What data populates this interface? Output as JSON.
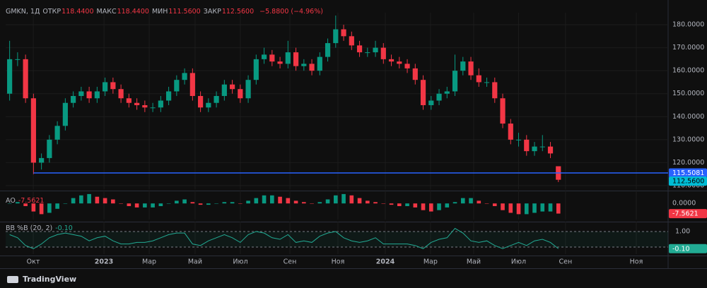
{
  "chart_data": [
    {
      "type": "candlestick",
      "symbol": "GMKN, 1Д",
      "ohlc_labels": [
        {
          "name": "ОТКР",
          "value": "118.4400"
        },
        {
          "name": "МАКС",
          "value": "118.4400"
        },
        {
          "name": "МИН",
          "value": "111.5600"
        },
        {
          "name": "ЗАКР",
          "value": "112.5600"
        }
      ],
      "change": "−5.8800 (−4.96%)",
      "open": [
        150,
        165,
        165,
        148,
        120,
        122,
        130,
        136,
        146,
        149,
        151,
        148,
        151,
        155,
        152,
        148,
        146,
        145,
        144,
        144,
        147,
        151,
        156,
        159,
        149,
        144,
        146,
        149,
        154,
        152,
        148,
        156,
        165,
        167,
        164,
        163,
        168,
        162,
        163,
        160,
        166,
        172,
        178,
        175,
        171,
        168,
        168,
        170,
        165,
        164,
        163,
        161,
        156,
        145,
        147,
        150,
        151,
        160,
        164,
        158,
        155,
        155,
        148,
        137,
        130,
        130,
        125,
        127,
        127,
        118.44
      ],
      "high": [
        173,
        168,
        167,
        150,
        124,
        132,
        138,
        148,
        151,
        153,
        153,
        153,
        157,
        157,
        154,
        150,
        148,
        147,
        146,
        149,
        153,
        158,
        161,
        161,
        151,
        148,
        151,
        156,
        156,
        154,
        158,
        167,
        170,
        169,
        166,
        173,
        170,
        165,
        165,
        168,
        174,
        184,
        180,
        177,
        173,
        170,
        173,
        172,
        167,
        166,
        165,
        163,
        158,
        149,
        152,
        153,
        167,
        166,
        166,
        161,
        157,
        157,
        150,
        139,
        133,
        132,
        129,
        132,
        129,
        118.44
      ],
      "low": [
        147,
        162,
        146,
        115,
        117,
        120,
        128,
        134,
        144,
        147,
        146,
        146,
        149,
        150,
        146,
        144,
        143,
        142,
        142,
        142,
        145,
        149,
        154,
        147,
        142,
        142,
        144,
        147,
        150,
        146,
        146,
        154,
        163,
        162,
        161,
        161,
        160,
        160,
        158,
        158,
        164,
        170,
        173,
        169,
        166,
        166,
        166,
        163,
        162,
        161,
        159,
        154,
        143,
        143,
        145,
        148,
        149,
        158,
        156,
        153,
        153,
        146,
        135,
        128,
        127,
        123,
        123,
        125,
        122,
        111.56
      ],
      "close": [
        165,
        165,
        148,
        120,
        122,
        130,
        136,
        146,
        149,
        151,
        148,
        151,
        155,
        152,
        148,
        146,
        145,
        144,
        144,
        147,
        151,
        156,
        159,
        149,
        144,
        146,
        149,
        154,
        152,
        148,
        156,
        165,
        167,
        164,
        163,
        168,
        162,
        163,
        160,
        166,
        172,
        178,
        175,
        171,
        168,
        168,
        170,
        165,
        164,
        163,
        161,
        156,
        145,
        147,
        150,
        151,
        160,
        164,
        158,
        155,
        155,
        148,
        137,
        130,
        130,
        125,
        127,
        127,
        124,
        112.56
      ],
      "up_color": "#089981",
      "down_color": "#f23645",
      "ylim": [
        108.46,
        184
      ],
      "yticks": [
        {
          "value": 110,
          "label": "110.0000"
        },
        {
          "value": 120,
          "label": "120.0000"
        },
        {
          "value": 130,
          "label": "130.0000"
        },
        {
          "value": 140,
          "label": "140.0000"
        },
        {
          "value": 150,
          "label": "150.0000"
        },
        {
          "value": 160,
          "label": "160.0000"
        },
        {
          "value": 170,
          "label": "170.0000"
        },
        {
          "value": 180,
          "label": "180.0000"
        }
      ],
      "xlim": [
        -0.5,
        82.8
      ],
      "xticks": [
        {
          "value": 2.97,
          "label": "Окт"
        },
        {
          "value": 11.86,
          "label": "2023"
        },
        {
          "value": 17.55,
          "label": "Мар"
        },
        {
          "value": 23.32,
          "label": "Май"
        },
        {
          "value": 29.01,
          "label": "Июл"
        },
        {
          "value": 35.24,
          "label": "Сен"
        },
        {
          "value": 41.28,
          "label": "Ноя"
        },
        {
          "value": 47.24,
          "label": "2024"
        },
        {
          "value": 52.92,
          "label": "Мар"
        },
        {
          "value": 58.35,
          "label": "Май"
        },
        {
          "value": 64.0,
          "label": "Июл"
        },
        {
          "value": 69.9,
          "label": "Сен"
        },
        {
          "value": 78.8,
          "label": "Ноя"
        }
      ],
      "hline": {
        "value": 115.5081,
        "label": "115.5081",
        "from": 3,
        "color": "#2962ff"
      },
      "last_label": "112.5600",
      "last_color": "#00bcd4",
      "grid": true
    },
    {
      "type": "histogram",
      "name": "AO",
      "last_label": "-7.5621",
      "values": [
        0,
        1,
        -2,
        -6,
        -8,
        -7,
        -4,
        0,
        4,
        6,
        7,
        5,
        4,
        3,
        0,
        -2,
        -3,
        -3,
        -3,
        -2,
        0,
        2,
        3,
        1,
        -1,
        -1,
        0,
        1,
        1,
        0,
        2,
        4,
        6,
        6,
        5,
        4,
        2,
        1,
        0,
        1,
        3,
        6,
        7,
        6,
        4,
        2,
        1,
        0,
        -1,
        -2,
        -2,
        -3,
        -5,
        -6,
        -5,
        -3,
        1,
        4,
        4,
        2,
        0,
        -2,
        -5,
        -7,
        -8,
        -8,
        -7,
        -6,
        -6,
        -7.5621
      ],
      "up_color": "#089981",
      "down_color": "#f23645",
      "ylim": [
        -12,
        8
      ],
      "yticks": [
        {
          "value": 0,
          "label": "0.0000"
        }
      ]
    },
    {
      "type": "line",
      "name": "BB %B (20, 2)",
      "last_label": "-0.10",
      "values": [
        0.8,
        0.6,
        0.1,
        -0.1,
        0.2,
        0.6,
        0.8,
        0.9,
        0.8,
        0.7,
        0.4,
        0.6,
        0.7,
        0.4,
        0.2,
        0.2,
        0.3,
        0.3,
        0.4,
        0.6,
        0.8,
        0.9,
        0.9,
        0.2,
        0.1,
        0.4,
        0.6,
        0.8,
        0.6,
        0.3,
        0.8,
        1.0,
        0.9,
        0.6,
        0.5,
        0.8,
        0.3,
        0.4,
        0.3,
        0.7,
        0.9,
        1.0,
        0.6,
        0.4,
        0.3,
        0.4,
        0.6,
        0.2,
        0.2,
        0.2,
        0.2,
        0.1,
        -0.1,
        0.3,
        0.5,
        0.6,
        1.2,
        0.9,
        0.4,
        0.3,
        0.4,
        0.1,
        -0.1,
        0.1,
        0.3,
        0.1,
        0.4,
        0.5,
        0.3,
        -0.1
      ],
      "color": "#22ab94",
      "ylim": [
        -0.45,
        1.45
      ],
      "yticks": [
        {
          "value": 1,
          "label": "1.00"
        }
      ],
      "bands": [
        1,
        0
      ]
    }
  ],
  "footer": {
    "brand": "TradingView"
  }
}
